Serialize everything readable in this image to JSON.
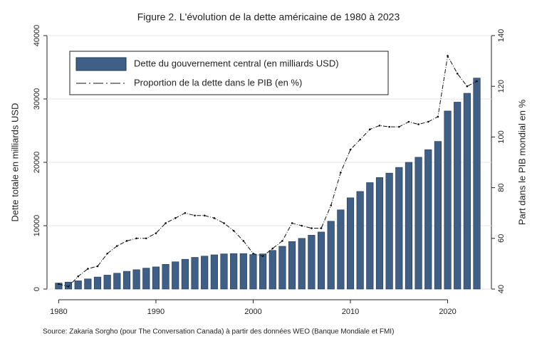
{
  "chart_data": {
    "type": "combo",
    "title": "Figure 2. L'évolution de la dette américaine de 1980 à 2023",
    "y_label": "Dette totale en milliards USD",
    "y2_label": "Part dans le PIB mondial en %",
    "source": "Source: Zakaria Sorgho (pour The Conversation Canada) à partir des données WEO (Banque Mondiale et FMI)",
    "x": [
      1980,
      1981,
      1982,
      1983,
      1984,
      1985,
      1986,
      1987,
      1988,
      1989,
      1990,
      1991,
      1992,
      1993,
      1994,
      1995,
      1996,
      1997,
      1998,
      1999,
      2000,
      2001,
      2002,
      2003,
      2004,
      2005,
      2006,
      2007,
      2008,
      2009,
      2010,
      2011,
      2012,
      2013,
      2014,
      2015,
      2016,
      2017,
      2018,
      2019,
      2020,
      2021,
      2022,
      2023
    ],
    "series": [
      {
        "name": "Dette du gouvernement central (en milliards USD)",
        "type": "bar",
        "color": "#3f5f87",
        "values": [
          950,
          1100,
          1300,
          1600,
          1900,
          2200,
          2500,
          2800,
          3050,
          3300,
          3500,
          3900,
          4300,
          4700,
          5000,
          5200,
          5400,
          5550,
          5600,
          5600,
          5450,
          5550,
          6100,
          6750,
          7500,
          8000,
          8500,
          9000,
          10700,
          12500,
          14400,
          15400,
          16800,
          17600,
          18300,
          19200,
          20000,
          20800,
          22000,
          23300,
          28100,
          29500,
          30900,
          33300
        ]
      },
      {
        "name": "Proportion de la dette dans le PIB  (en %)",
        "type": "line",
        "axis": "y2",
        "color": "#111111",
        "values": [
          42,
          41,
          45,
          48,
          49,
          54,
          57,
          59,
          60,
          60,
          62,
          66,
          68,
          70,
          69,
          69,
          68,
          66,
          63,
          59,
          54,
          53,
          56,
          59,
          66,
          65,
          64,
          64,
          73,
          86,
          95,
          99,
          103,
          104.5,
          104,
          104,
          106,
          105,
          106,
          108,
          132,
          125,
          120,
          122
        ]
      }
    ],
    "xlim": [
      1978.8,
      2024.5
    ],
    "xticks": [
      1980,
      1990,
      2000,
      2010,
      2020
    ],
    "ylim": [
      0,
      40000
    ],
    "yticks": [
      0,
      10000,
      20000,
      30000,
      40000
    ],
    "y2lim": [
      40,
      140
    ],
    "y2ticks": [
      40,
      60,
      80,
      100,
      120,
      140
    ],
    "grid": true,
    "legend": "upper left"
  }
}
